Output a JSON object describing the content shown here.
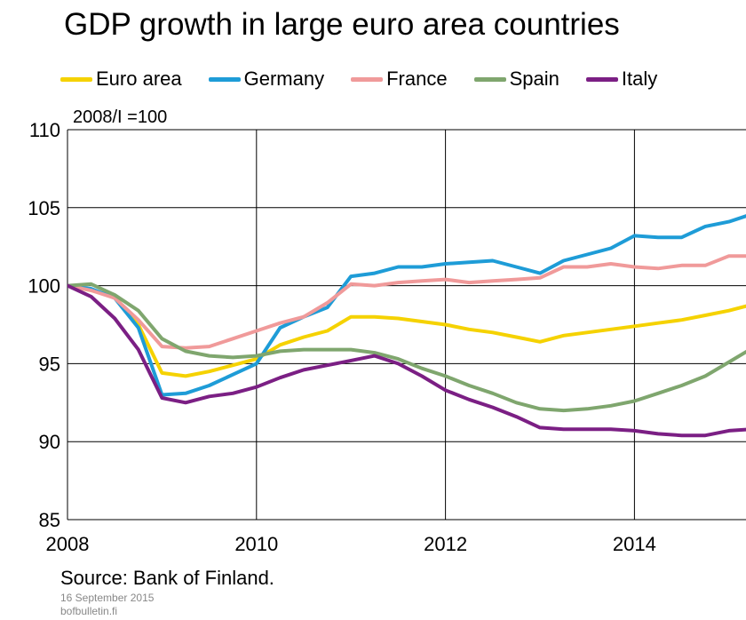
{
  "chart_data": {
    "type": "line",
    "title": "GDP growth in large euro area countries",
    "ylabel": "2008/I =100",
    "xlabel": "",
    "xlim": [
      2008.0,
      2015.5
    ],
    "ylim": [
      85,
      110
    ],
    "yticks": [
      85,
      90,
      95,
      100,
      105,
      110
    ],
    "xtick_labels": [
      "2008",
      "2010",
      "2012",
      "2014"
    ],
    "xtick_positions": [
      2008,
      2010,
      2012,
      2014
    ],
    "x_gridlines": [
      2010,
      2012,
      2014
    ],
    "grid": true,
    "legend_position": "top",
    "x": [
      2008.0,
      2008.25,
      2008.5,
      2008.75,
      2009.0,
      2009.25,
      2009.5,
      2009.75,
      2010.0,
      2010.25,
      2010.5,
      2010.75,
      2011.0,
      2011.25,
      2011.5,
      2011.75,
      2012.0,
      2012.25,
      2012.5,
      2012.75,
      2013.0,
      2013.25,
      2013.5,
      2013.75,
      2014.0,
      2014.25,
      2014.5,
      2014.75,
      2015.0,
      2015.25
    ],
    "series": [
      {
        "name": "Euro area",
        "color": "#f5d200",
        "values": [
          100.0,
          99.7,
          99.3,
          97.5,
          94.4,
          94.2,
          94.5,
          94.9,
          95.3,
          96.2,
          96.7,
          97.1,
          98.0,
          98.0,
          97.9,
          97.7,
          97.5,
          97.2,
          97.0,
          96.7,
          96.4,
          96.8,
          97.0,
          97.2,
          97.4,
          97.6,
          97.8,
          98.1,
          98.4,
          98.8
        ]
      },
      {
        "name": "Germany",
        "color": "#1e9cd7",
        "values": [
          100.0,
          99.8,
          99.2,
          97.3,
          93.0,
          93.1,
          93.6,
          94.3,
          95.0,
          97.3,
          98.0,
          98.6,
          100.6,
          100.8,
          101.2,
          101.2,
          101.4,
          101.5,
          101.6,
          101.2,
          100.8,
          101.6,
          102.0,
          102.4,
          103.2,
          103.1,
          103.1,
          103.8,
          104.1,
          104.6
        ]
      },
      {
        "name": "France",
        "color": "#f09a9a",
        "values": [
          100.0,
          99.7,
          99.2,
          97.8,
          96.1,
          96.0,
          96.1,
          96.6,
          97.1,
          97.6,
          98.0,
          98.9,
          100.1,
          100.0,
          100.2,
          100.3,
          100.4,
          100.2,
          100.3,
          100.4,
          100.5,
          101.2,
          101.2,
          101.4,
          101.2,
          101.1,
          101.3,
          101.3,
          101.9,
          101.9
        ]
      },
      {
        "name": "Spain",
        "color": "#7fa66e",
        "values": [
          100.0,
          100.1,
          99.4,
          98.4,
          96.6,
          95.8,
          95.5,
          95.4,
          95.5,
          95.8,
          95.9,
          95.9,
          95.9,
          95.7,
          95.3,
          94.7,
          94.2,
          93.6,
          93.1,
          92.5,
          92.1,
          92.0,
          92.1,
          92.3,
          92.6,
          93.1,
          93.6,
          94.2,
          95.1,
          96.0
        ]
      },
      {
        "name": "Italy",
        "color": "#7b1f84",
        "values": [
          100.0,
          99.3,
          97.9,
          95.9,
          92.8,
          92.5,
          92.9,
          93.1,
          93.5,
          94.1,
          94.6,
          94.9,
          95.2,
          95.5,
          95.0,
          94.2,
          93.3,
          92.7,
          92.2,
          91.6,
          90.9,
          90.8,
          90.8,
          90.8,
          90.7,
          90.5,
          90.4,
          90.4,
          90.7,
          90.8
        ]
      }
    ]
  },
  "footer": {
    "source": "Source: Bank of Finland.",
    "date": "16 September 2015",
    "site": "bofbulletin.fi"
  }
}
